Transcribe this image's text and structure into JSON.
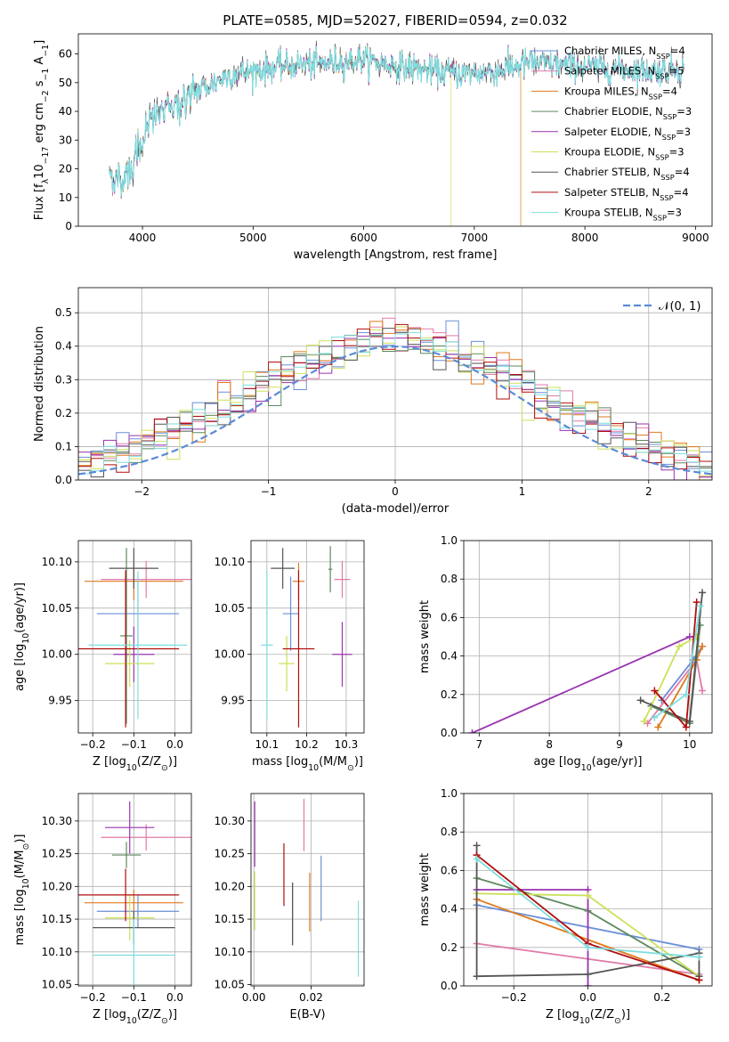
{
  "colors": {
    "Chabrier MILES": "#6a8fd8",
    "Salpeter MILES": "#e07aa8",
    "Kroupa MILES": "#e07a1f",
    "Chabrier ELODIE": "#5e8a5e",
    "Salpeter ELODIE": "#9a34b0",
    "Kroupa ELODIE": "#cde05a",
    "Chabrier STELIB": "#555555",
    "Salpeter STELIB": "#b00d0d",
    "Kroupa STELIB": "#7fdede",
    "normal_curve": "#5b8bd8",
    "grid": "#b0b0b0"
  },
  "chart_data": [
    {
      "id": "spectrum",
      "type": "line",
      "title": "PLATE=0585, MJD=52027, FIBERID=0594, z=0.032",
      "xlabel": "wavelength [Angstrom, rest frame]",
      "ylabel_parts": [
        "Flux [f",
        "λ",
        "10",
        "−17",
        " erg cm",
        "−2",
        " s",
        "−1",
        " A",
        "−1",
        "]"
      ],
      "xlim": [
        3420,
        9150
      ],
      "ylim": [
        0,
        67
      ],
      "xticks": [
        4000,
        5000,
        6000,
        7000,
        8000,
        9000
      ],
      "yticks": [
        0,
        10,
        20,
        30,
        40,
        50,
        60
      ],
      "grid": false,
      "legend_position": "top-right",
      "legend": [
        {
          "name": "Chabrier MILES",
          "n": "4"
        },
        {
          "name": "Salpeter MILES",
          "n": "5"
        },
        {
          "name": "Kroupa MILES",
          "n": "4"
        },
        {
          "name": "Chabrier ELODIE",
          "n": "3"
        },
        {
          "name": "Salpeter ELODIE",
          "n": "3"
        },
        {
          "name": "Kroupa ELODIE",
          "n": "3"
        },
        {
          "name": "Chabrier STELIB",
          "n": "4"
        },
        {
          "name": "Salpeter STELIB",
          "n": "4"
        },
        {
          "name": "Kroupa STELIB",
          "n": "3"
        }
      ],
      "legend_label_parts": [
        ", N",
        "SSP",
        "="
      ],
      "spectrum_knots": [
        [
          3700,
          18
        ],
        [
          3800,
          16
        ],
        [
          3900,
          20
        ],
        [
          3970,
          28
        ],
        [
          4100,
          38
        ],
        [
          4300,
          42
        ],
        [
          4500,
          47
        ],
        [
          4800,
          53
        ],
        [
          5000,
          54
        ],
        [
          5300,
          56
        ],
        [
          5700,
          57
        ],
        [
          6000,
          58
        ],
        [
          6300,
          56
        ],
        [
          6600,
          54
        ],
        [
          6900,
          53
        ],
        [
          7200,
          54
        ],
        [
          7500,
          57
        ],
        [
          7800,
          56
        ],
        [
          8200,
          55
        ],
        [
          8600,
          54
        ],
        [
          8900,
          55
        ]
      ],
      "cutoffs": [
        {
          "series": "Kroupa ELODIE",
          "x": 6790
        },
        {
          "series": "Kroupa MILES",
          "x": 7420
        }
      ]
    },
    {
      "id": "residuals",
      "type": "histogram",
      "xlabel": "(data-model)/error",
      "ylabel": "Normed distribution",
      "xlim": [
        -2.5,
        2.5
      ],
      "ylim": [
        0,
        0.575
      ],
      "xticks": [
        -2,
        -1,
        0,
        1,
        2
      ],
      "yticks": [
        0.0,
        0.1,
        0.2,
        0.3,
        0.4,
        0.5
      ],
      "grid": true,
      "bin_width": 0.1,
      "legend_position": "top-right",
      "reference_curve": {
        "label_parts": [
          "𝒩",
          "(0, 1)"
        ],
        "mu": 0,
        "sigma": 1
      }
    },
    {
      "id": "age-Z",
      "type": "errorbar",
      "xlabel_parts": [
        "Z [log",
        "10",
        "(Z/Z",
        "⊙",
        ")]"
      ],
      "ylabel_parts": [
        "age  [log",
        "10",
        "(age/yr)]"
      ],
      "xlim": [
        -0.235,
        0.04
      ],
      "ylim": [
        9.915,
        10.123
      ],
      "xticks": [
        -0.2,
        -0.1,
        0.0
      ],
      "yticks": [
        9.95,
        10.0,
        10.05,
        10.1
      ],
      "grid": true,
      "points": [
        {
          "series": "Chabrier MILES",
          "x": -0.09,
          "xerr": 0.1,
          "y": 10.044,
          "yerr": 0.04
        },
        {
          "series": "Salpeter MILES",
          "x": -0.07,
          "xerr": 0.11,
          "y": 10.081,
          "yerr": 0.02
        },
        {
          "series": "Kroupa MILES",
          "x": -0.1,
          "xerr": 0.12,
          "y": 10.079,
          "yerr": 0.02
        },
        {
          "series": "Chabrier ELODIE",
          "x": -0.118,
          "xerr": 0.015,
          "y": 10.02,
          "yerr": 0.095
        },
        {
          "series": "Salpeter ELODIE",
          "x": -0.1,
          "xerr": 0.05,
          "y": 10.0,
          "yerr": 0.03
        },
        {
          "series": "Kroupa ELODIE",
          "x": -0.11,
          "xerr": 0.06,
          "y": 9.99,
          "yerr": 0.025
        },
        {
          "series": "Chabrier STELIB",
          "x": -0.1,
          "xerr": 0.06,
          "y": 10.093,
          "yerr": 0.022
        },
        {
          "series": "Salpeter STELIB",
          "x": -0.12,
          "xerr": 0.13,
          "y": 10.006,
          "yerr": 0.085
        },
        {
          "series": "Kroupa STELIB",
          "x": -0.09,
          "xerr": 0.12,
          "y": 10.01,
          "yerr": 0.08
        }
      ]
    },
    {
      "id": "age-mass",
      "type": "errorbar",
      "xlabel_parts": [
        "mass [log",
        "10",
        "(M/M",
        "⊙",
        ")]"
      ],
      "xlim": [
        10.06,
        10.345
      ],
      "ylim": [
        9.915,
        10.123
      ],
      "xticks": [
        10.1,
        10.2,
        10.3
      ],
      "yticks": [
        9.95,
        10.0,
        10.05,
        10.1
      ],
      "grid": true,
      "points": [
        {
          "series": "Chabrier MILES",
          "x": 10.16,
          "xerr": 0.02,
          "y": 10.044,
          "yerr": 0.04
        },
        {
          "series": "Salpeter MILES",
          "x": 10.29,
          "xerr": 0.02,
          "y": 10.081,
          "yerr": 0.02
        },
        {
          "series": "Kroupa MILES",
          "x": 10.18,
          "xerr": 0.015,
          "y": 10.079,
          "yerr": 0.02
        },
        {
          "series": "Chabrier ELODIE",
          "x": 10.26,
          "xerr": 0.005,
          "y": 10.092,
          "yerr": 0.025
        },
        {
          "series": "Salpeter ELODIE",
          "x": 10.29,
          "xerr": 0.025,
          "y": 10.0,
          "yerr": 0.035
        },
        {
          "series": "Kroupa ELODIE",
          "x": 10.15,
          "xerr": 0.02,
          "y": 9.99,
          "yerr": 0.03
        },
        {
          "series": "Chabrier STELIB",
          "x": 10.14,
          "xerr": 0.03,
          "y": 10.093,
          "yerr": 0.022
        },
        {
          "series": "Salpeter STELIB",
          "x": 10.18,
          "xerr": 0.04,
          "y": 10.006,
          "yerr": 0.085
        },
        {
          "series": "Kroupa STELIB",
          "x": 10.1,
          "xerr": 0.015,
          "y": 10.01,
          "yerr": 0.08
        }
      ]
    },
    {
      "id": "weight-age",
      "type": "line",
      "xlabel_parts": [
        "age  [log",
        "10",
        "(age/yr)]"
      ],
      "ylabel": "mass weight",
      "xlim": [
        6.78,
        10.32
      ],
      "ylim": [
        0,
        1
      ],
      "xticks": [
        7,
        8,
        9,
        10
      ],
      "yticks": [
        0.0,
        0.2,
        0.4,
        0.6,
        0.8,
        1.0
      ],
      "grid": true,
      "series": [
        {
          "name": "Salpeter ELODIE",
          "x": [
            6.9,
            10.0,
            10.1
          ],
          "y": [
            0.0,
            0.5,
            0.5
          ]
        },
        {
          "name": "Chabrier MILES",
          "x": [
            9.6,
            10.05,
            10.18
          ],
          "y": [
            0.17,
            0.38,
            0.45
          ]
        },
        {
          "name": "Salpeter MILES",
          "x": [
            9.4,
            10.1,
            10.18
          ],
          "y": [
            0.05,
            0.38,
            0.22
          ]
        },
        {
          "name": "Kroupa MILES",
          "x": [
            9.55,
            10.1,
            10.18
          ],
          "y": [
            0.03,
            0.38,
            0.45
          ]
        },
        {
          "name": "Chabrier ELODIE",
          "x": [
            9.45,
            10.0,
            10.15
          ],
          "y": [
            0.14,
            0.05,
            0.56
          ]
        },
        {
          "name": "Kroupa ELODIE",
          "x": [
            9.35,
            9.85,
            10.1
          ],
          "y": [
            0.06,
            0.45,
            0.5
          ]
        },
        {
          "name": "Chabrier STELIB",
          "x": [
            9.3,
            10.0,
            10.18
          ],
          "y": [
            0.17,
            0.06,
            0.73
          ]
        },
        {
          "name": "Salpeter STELIB",
          "x": [
            9.5,
            9.95,
            10.1
          ],
          "y": [
            0.22,
            0.03,
            0.68
          ]
        },
        {
          "name": "Kroupa STELIB",
          "x": [
            9.5,
            9.95,
            10.15
          ],
          "y": [
            0.08,
            0.2,
            0.66
          ]
        }
      ]
    },
    {
      "id": "mass-Z",
      "type": "errorbar",
      "xlabel_parts": [
        "Z [log",
        "10",
        "(Z/Z",
        "⊙",
        ")]"
      ],
      "ylabel_parts": [
        "mass [log",
        "10",
        "(M/M",
        "⊙",
        ")]"
      ],
      "xlim": [
        -0.235,
        0.04
      ],
      "ylim": [
        10.048,
        10.342
      ],
      "xticks": [
        -0.2,
        -0.1,
        0.0
      ],
      "yticks": [
        10.05,
        10.1,
        10.15,
        10.2,
        10.25,
        10.3
      ],
      "grid": true,
      "points": [
        {
          "series": "Chabrier MILES",
          "x": -0.09,
          "xerr": 0.1,
          "y": 10.162,
          "yerr": 0.025
        },
        {
          "series": "Salpeter MILES",
          "x": -0.07,
          "xerr": 0.11,
          "y": 10.275,
          "yerr": 0.02
        },
        {
          "series": "Kroupa MILES",
          "x": -0.1,
          "xerr": 0.12,
          "y": 10.175,
          "yerr": 0.02
        },
        {
          "series": "Chabrier ELODIE",
          "x": -0.118,
          "xerr": 0.035,
          "y": 10.248,
          "yerr": 0.02
        },
        {
          "series": "Salpeter ELODIE",
          "x": -0.11,
          "xerr": 0.06,
          "y": 10.29,
          "yerr": 0.04
        },
        {
          "series": "Kroupa ELODIE",
          "x": -0.11,
          "xerr": 0.06,
          "y": 10.152,
          "yerr": 0.035
        },
        {
          "series": "Chabrier STELIB",
          "x": -0.1,
          "xerr": 0.1,
          "y": 10.137,
          "yerr": 0.025
        },
        {
          "series": "Salpeter STELIB",
          "x": -0.12,
          "xerr": 0.13,
          "y": 10.187,
          "yerr": 0.04
        },
        {
          "series": "Kroupa STELIB",
          "x": -0.1,
          "xerr": 0.1,
          "y": 10.095,
          "yerr": 0.055
        }
      ]
    },
    {
      "id": "mass-EBV",
      "type": "errorbar",
      "xlabel": "E(B-V)",
      "xlim": [
        -0.001,
        0.0385
      ],
      "ylim": [
        10.048,
        10.342
      ],
      "xticks": [
        0.0,
        0.02
      ],
      "xtick_labels": [
        "0.00",
        "0.02"
      ],
      "yticks": [
        10.05,
        10.1,
        10.15,
        10.2,
        10.25,
        10.3
      ],
      "grid": true,
      "points": [
        {
          "series": "Chabrier MILES",
          "x": 0.0235,
          "y": 10.197,
          "yerr": 0.05
        },
        {
          "series": "Salpeter MILES",
          "x": 0.0175,
          "y": 10.294,
          "yerr": 0.04
        },
        {
          "series": "Kroupa MILES",
          "x": 0.0195,
          "y": 10.176,
          "yerr": 0.045
        },
        {
          "series": "Chabrier ELODIE",
          "x": 0.0135,
          "y": 10.158,
          "yerr": 0.048
        },
        {
          "series": "Salpeter ELODIE",
          "x": 0.0003,
          "y": 10.28,
          "yerr": 0.05
        },
        {
          "series": "Kroupa ELODIE",
          "x": 0.0003,
          "y": 10.178,
          "yerr": 0.045
        },
        {
          "series": "Chabrier STELIB",
          "x": 0.0135,
          "y": 10.158,
          "yerr": 0.048
        },
        {
          "series": "Salpeter STELIB",
          "x": 0.0105,
          "y": 10.218,
          "yerr": 0.048
        },
        {
          "series": "Kroupa STELIB",
          "x": 0.0365,
          "y": 10.12,
          "yerr": 0.058
        }
      ]
    },
    {
      "id": "weight-Z",
      "type": "line",
      "xlabel_parts": [
        "Z [log",
        "10",
        "(Z/Z",
        "⊙",
        ")]"
      ],
      "ylabel": "mass weight",
      "xlim": [
        -0.335,
        0.335
      ],
      "ylim": [
        0,
        1
      ],
      "xticks": [
        -0.2,
        0.0,
        0.2
      ],
      "xtick_labels": [
        "−0.2",
        "0.0",
        "0.2"
      ],
      "yticks": [
        0.0,
        0.2,
        0.4,
        0.6,
        0.8,
        1.0
      ],
      "grid": true,
      "series": [
        {
          "name": "Chabrier MILES",
          "x": [
            -0.3,
            0.3
          ],
          "y": [
            0.42,
            0.19
          ]
        },
        {
          "name": "Salpeter MILES",
          "x": [
            -0.3,
            0.3
          ],
          "y": [
            0.22,
            0.06
          ]
        },
        {
          "name": "Kroupa MILES",
          "x": [
            -0.3,
            0.3
          ],
          "y": [
            0.45,
            0.03
          ]
        },
        {
          "name": "Chabrier ELODIE",
          "x": [
            -0.3,
            0.0,
            0.3
          ],
          "y": [
            0.56,
            0.39,
            0.05
          ]
        },
        {
          "name": "Salpeter ELODIE",
          "x": [
            -0.3,
            0.0,
            0.0
          ],
          "y": [
            0.5,
            0.5,
            0.0
          ]
        },
        {
          "name": "Kroupa ELODIE",
          "x": [
            -0.3,
            0.0,
            0.3
          ],
          "y": [
            0.48,
            0.47,
            0.05
          ]
        },
        {
          "name": "Chabrier STELIB",
          "x": [
            -0.3,
            -0.3,
            0.0,
            0.3,
            0.3
          ],
          "y": [
            0.73,
            0.05,
            0.06,
            0.17,
            0.05
          ]
        },
        {
          "name": "Salpeter STELIB",
          "x": [
            -0.3,
            0.0,
            0.3
          ],
          "y": [
            0.68,
            0.22,
            0.03
          ]
        },
        {
          "name": "Kroupa STELIB",
          "x": [
            -0.3,
            0.0,
            0.3
          ],
          "y": [
            0.66,
            0.2,
            0.15
          ]
        }
      ]
    }
  ]
}
